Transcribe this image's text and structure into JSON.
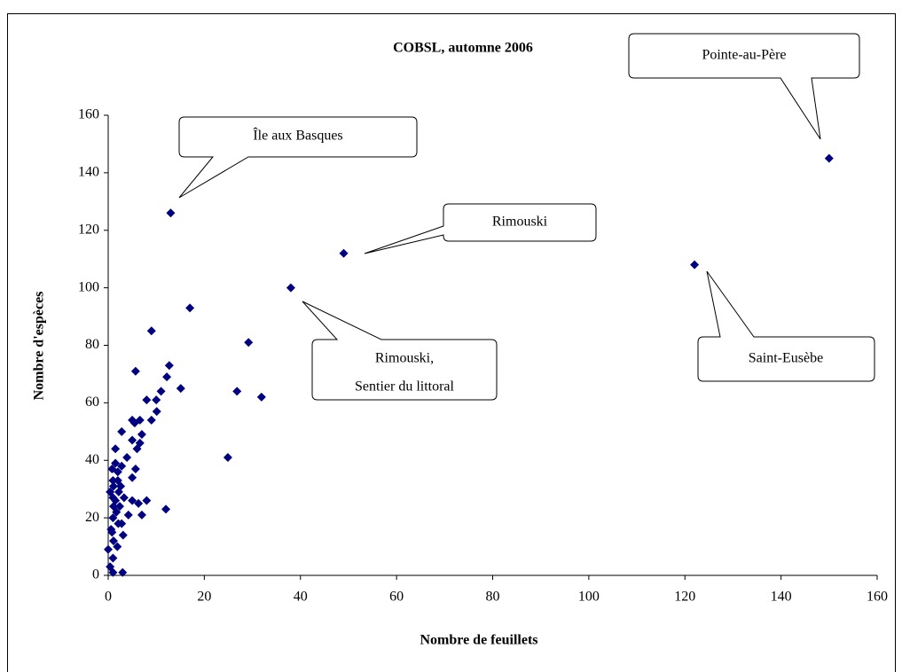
{
  "chart_data": {
    "type": "scatter",
    "title": "COBSL, automne 2006",
    "x_label": "Nombre de feuillets",
    "y_label": "Nombre d'espèces",
    "color": "#000080",
    "xlim": [
      0,
      160
    ],
    "xticks": [
      0,
      20,
      40,
      60,
      80,
      100,
      120,
      140,
      160
    ],
    "ylim": [
      0,
      160
    ],
    "yticks": [
      0,
      20,
      40,
      60,
      80,
      100,
      120,
      140,
      160
    ],
    "x": [
      13,
      49,
      38,
      150,
      122,
      17,
      9,
      29.2,
      5.7,
      12.7,
      12.2,
      15.1,
      26.8,
      31.9,
      11,
      10,
      8,
      10.1,
      9,
      6.6,
      5,
      5.5,
      2.8,
      7,
      5,
      6.6,
      6,
      1.5,
      24.9,
      3.9,
      1.5,
      2.8,
      5.7,
      5,
      1,
      2,
      2.6,
      0.4,
      3.3,
      1.5,
      5,
      8,
      6.3,
      12,
      4.2,
      7,
      1,
      2.8,
      0.6,
      3.1,
      1.1,
      0,
      1,
      0.4,
      1,
      3,
      1,
      1.1,
      1.7,
      2.1,
      0.8,
      1.9,
      2.4,
      2.2,
      0.8,
      1.1,
      2
    ],
    "y": [
      126,
      112,
      100,
      145,
      108,
      93,
      85,
      81,
      71,
      73,
      69,
      65,
      64,
      62,
      64,
      61,
      61,
      57,
      54,
      54,
      54,
      53,
      50,
      49,
      47,
      46,
      44,
      44,
      41,
      41,
      39,
      38,
      37,
      34,
      33,
      33,
      31,
      29,
      27,
      26,
      26,
      26,
      25,
      23,
      21,
      21,
      20,
      18,
      16,
      14,
      12,
      9,
      6,
      3,
      1,
      1,
      27,
      24,
      22,
      18,
      15,
      10,
      24,
      29,
      37,
      31,
      36
    ],
    "annotations": [
      {
        "lines": [
          "Pointe-au-Père"
        ]
      },
      {
        "lines": [
          "Île aux Basques"
        ]
      },
      {
        "lines": [
          "Rimouski"
        ]
      },
      {
        "lines": [
          "Rimouski,",
          "Sentier du littoral"
        ]
      },
      {
        "lines": [
          "Saint-Eusèbe"
        ]
      }
    ]
  }
}
